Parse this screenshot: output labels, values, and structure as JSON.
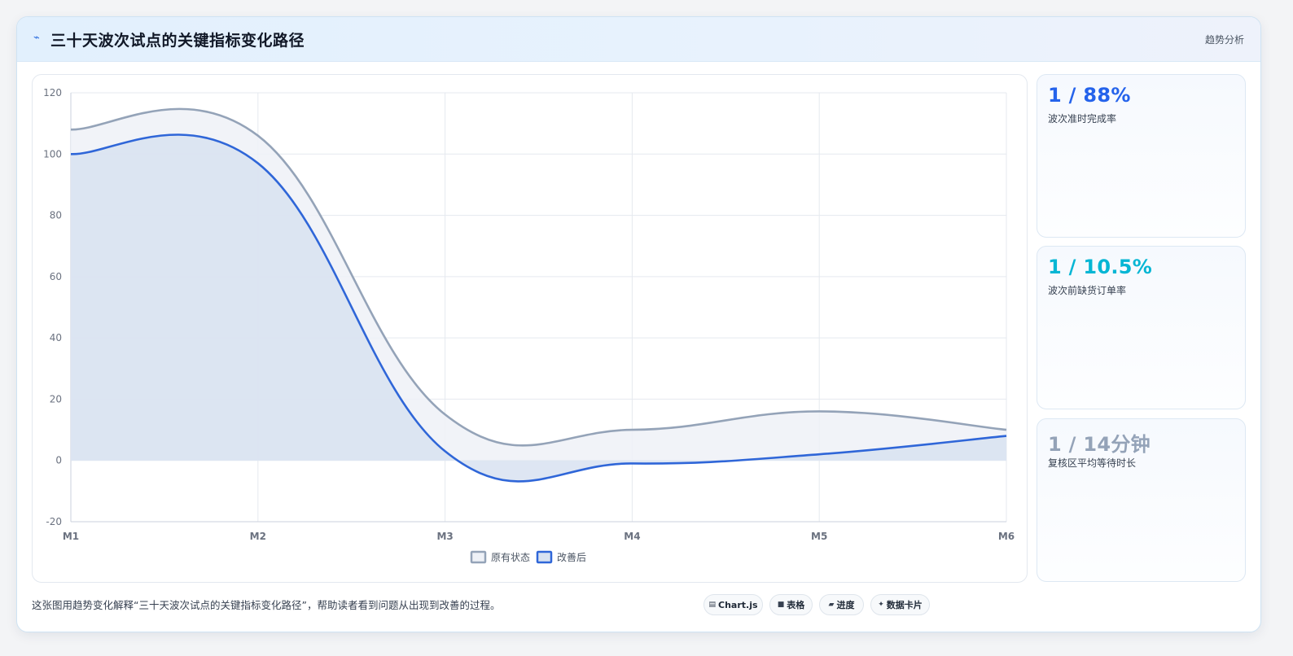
{
  "header": {
    "icon": "trend-icon",
    "title": "三十天波次试点的关键指标变化路径",
    "badge": "趋势分析"
  },
  "stats": [
    {
      "value": "1 / 88%",
      "label": "波次准时完成率",
      "color": "#2563eb"
    },
    {
      "value": "1 / 10.5%",
      "label": "波次前缺货订单率",
      "color": "#06b6d4"
    },
    {
      "value": "1 / 14分钟",
      "label": "复核区平均等待时长",
      "color": "#94a3b8"
    }
  ],
  "footer": {
    "description": "这张图用趋势变化解释“三十天波次试点的关键指标变化路径”，帮助读者看到问题从出现到改善的过程。",
    "chips": [
      {
        "icon": "chart-icon",
        "label": "Chart.js"
      },
      {
        "icon": "table-icon",
        "label": "表格"
      },
      {
        "icon": "progress-icon",
        "label": "进度"
      },
      {
        "icon": "card-icon",
        "label": "数据卡片"
      }
    ]
  },
  "chart_data": {
    "type": "area",
    "categories": [
      "M1",
      "M2",
      "M3",
      "M4",
      "M5",
      "M6"
    ],
    "ylim": [
      -20,
      120
    ],
    "yticks": [
      -20,
      0,
      20,
      40,
      60,
      80,
      100,
      120
    ],
    "grid": true,
    "legend_position": "bottom",
    "series": [
      {
        "name": "原有状态",
        "values": [
          108,
          106,
          15,
          10,
          16,
          10
        ],
        "color": "#94a3b8",
        "fill": "#eef1f7"
      },
      {
        "name": "改善后",
        "values": [
          100,
          97,
          3,
          -1,
          2,
          8
        ],
        "color": "#2f66d8",
        "fill": "#d8e2f1"
      }
    ]
  }
}
